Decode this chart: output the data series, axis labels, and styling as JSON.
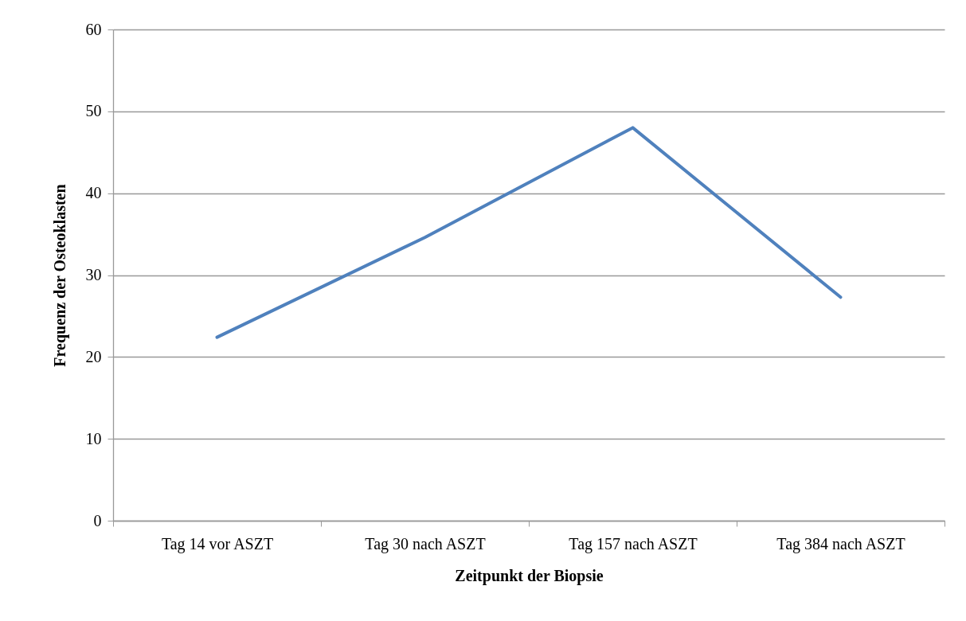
{
  "chart_data": {
    "type": "line",
    "xlabel": "Zeitpunkt der Biopsie",
    "ylabel": "Frequenz der Osteoklasten",
    "categories": [
      "Tag 14 vor ASZT",
      "Tag 30 nach ASZT",
      "Tag 157  nach ASZT",
      "Tag 384 nach ASZT"
    ],
    "series": [
      {
        "color": "#4f81bd",
        "values": [
          22.4,
          34.6,
          48.0,
          27.3
        ]
      }
    ],
    "ylim": [
      0,
      60
    ],
    "yticks": [
      0,
      10,
      20,
      30,
      40,
      50,
      60
    ],
    "grid": "y",
    "marker": "none",
    "line_style": "solid"
  }
}
